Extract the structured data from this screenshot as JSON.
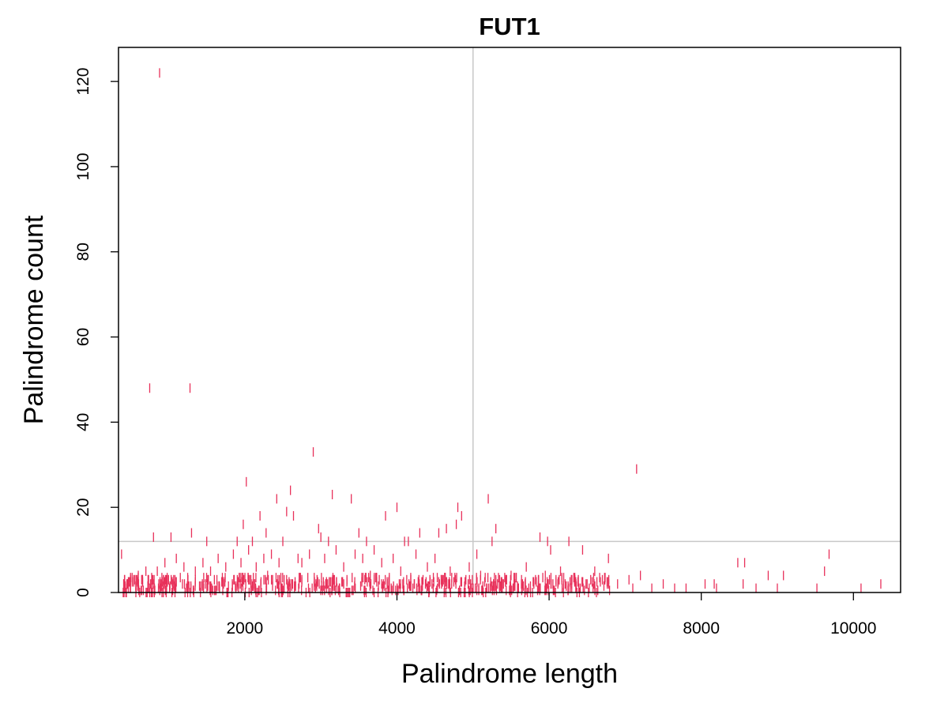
{
  "chart_data": {
    "type": "scatter",
    "title": "FUT1",
    "xlabel": "Palindrome length",
    "ylabel": "Palindrome count",
    "xlim": [
      340,
      10620
    ],
    "ylim": [
      0,
      128
    ],
    "x_ticks": [
      2000,
      4000,
      6000,
      8000,
      10000
    ],
    "y_ticks": [
      0,
      20,
      40,
      60,
      80,
      100,
      120
    ],
    "x_tick_labels": [
      "2000",
      "4000",
      "6000",
      "8000",
      "10000"
    ],
    "y_tick_labels": [
      "0",
      "20",
      "40",
      "60",
      "80",
      "100",
      "120"
    ],
    "reference_lines": {
      "vertical_x": 5000,
      "horizontal_y": 12
    },
    "colors": {
      "points": "#e8305a",
      "reference": "#c8c8c8"
    },
    "points": [
      [
        880,
        122
      ],
      [
        750,
        48
      ],
      [
        1280,
        48
      ],
      [
        2900,
        33
      ],
      [
        7150,
        29
      ],
      [
        2020,
        26
      ],
      [
        2600,
        24
      ],
      [
        3150,
        23
      ],
      [
        5200,
        22
      ],
      [
        2420,
        22
      ],
      [
        3400,
        22
      ],
      [
        4000,
        20
      ],
      [
        4800,
        20
      ],
      [
        2550,
        19
      ],
      [
        4850,
        18
      ],
      [
        2200,
        18
      ],
      [
        2640,
        18
      ],
      [
        3850,
        18
      ],
      [
        4780,
        16
      ],
      [
        5300,
        15
      ],
      [
        2970,
        15
      ],
      [
        1980,
        16
      ],
      [
        2280,
        14
      ],
      [
        1300,
        14
      ],
      [
        3500,
        14
      ],
      [
        3000,
        13
      ],
      [
        4300,
        14
      ],
      [
        4550,
        14
      ],
      [
        4650,
        15
      ],
      [
        5880,
        13
      ],
      [
        1030,
        13
      ],
      [
        800,
        13
      ],
      [
        6260,
        12
      ],
      [
        5980,
        12
      ],
      [
        6020,
        10
      ],
      [
        1500,
        12
      ],
      [
        1900,
        12
      ],
      [
        2100,
        12
      ],
      [
        2500,
        12
      ],
      [
        3100,
        12
      ],
      [
        3600,
        12
      ],
      [
        4100,
        12
      ],
      [
        4150,
        12
      ],
      [
        5250,
        12
      ],
      [
        6440,
        10
      ],
      [
        9680,
        9
      ],
      [
        8480,
        7
      ],
      [
        8570,
        7
      ],
      [
        6780,
        8
      ],
      [
        380,
        9
      ],
      [
        7200,
        4
      ],
      [
        8880,
        4
      ],
      [
        9080,
        4
      ],
      [
        9620,
        5
      ],
      [
        7800,
        1
      ],
      [
        8050,
        2
      ],
      [
        8170,
        2
      ],
      [
        8550,
        2
      ],
      [
        8720,
        1
      ],
      [
        9520,
        1
      ],
      [
        10360,
        2
      ],
      [
        7500,
        2
      ],
      [
        7350,
        1
      ],
      [
        7050,
        3
      ],
      [
        6900,
        2
      ],
      [
        6700,
        3
      ],
      [
        6600,
        5
      ],
      [
        6500,
        2
      ],
      [
        6300,
        3
      ],
      [
        6150,
        5
      ],
      [
        5950,
        4
      ],
      [
        5700,
        6
      ],
      [
        5500,
        4
      ],
      [
        5400,
        2
      ],
      [
        5100,
        4
      ],
      [
        5050,
        9
      ],
      [
        4950,
        6
      ],
      [
        4700,
        5
      ],
      [
        4500,
        8
      ],
      [
        4400,
        6
      ],
      [
        4250,
        9
      ],
      [
        4050,
        5
      ],
      [
        3950,
        8
      ],
      [
        3800,
        7
      ],
      [
        3700,
        10
      ],
      [
        3550,
        8
      ],
      [
        3450,
        9
      ],
      [
        3300,
        6
      ],
      [
        3200,
        10
      ],
      [
        3050,
        8
      ],
      [
        2850,
        9
      ],
      [
        2750,
        7
      ],
      [
        2700,
        8
      ],
      [
        2450,
        7
      ],
      [
        2350,
        9
      ],
      [
        2250,
        8
      ],
      [
        2150,
        6
      ],
      [
        2050,
        10
      ],
      [
        1950,
        7
      ],
      [
        1850,
        9
      ],
      [
        1750,
        6
      ],
      [
        1650,
        8
      ],
      [
        1550,
        5
      ],
      [
        1450,
        7
      ],
      [
        1350,
        5
      ],
      [
        1200,
        6
      ],
      [
        1100,
        8
      ],
      [
        950,
        7
      ],
      [
        850,
        5
      ],
      [
        700,
        5
      ],
      [
        600,
        4
      ],
      [
        500,
        3
      ],
      [
        450,
        2
      ],
      [
        5800,
        2
      ],
      [
        6050,
        2
      ],
      [
        6350,
        1
      ],
      [
        7100,
        1
      ],
      [
        7650,
        1
      ],
      [
        8200,
        1
      ],
      [
        9000,
        1
      ],
      [
        10100,
        1
      ],
      [
        4600,
        3
      ],
      [
        3650,
        4
      ],
      [
        2950,
        3
      ],
      [
        2300,
        4
      ],
      [
        1600,
        3
      ]
    ],
    "dense_band": {
      "x_range": [
        400,
        6800
      ],
      "y_range": [
        0,
        3
      ],
      "count": 700
    }
  }
}
